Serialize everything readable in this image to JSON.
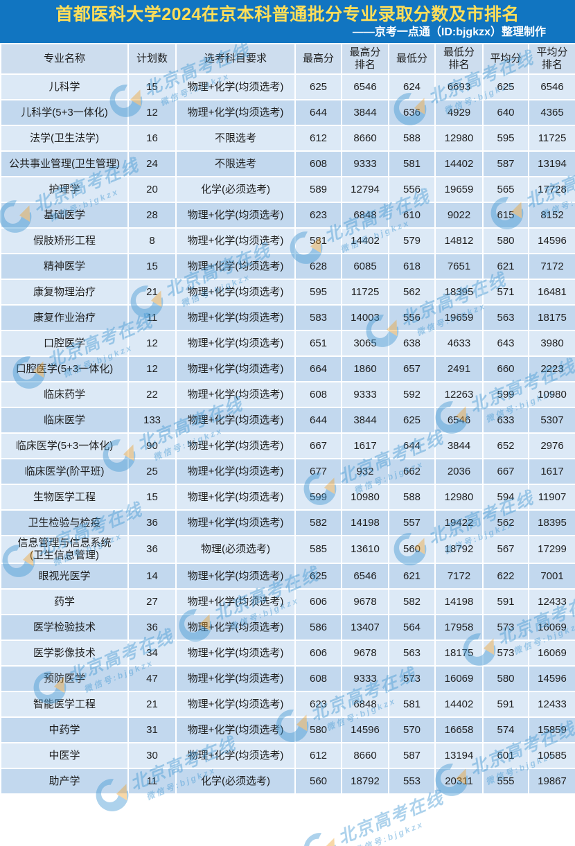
{
  "banner": {
    "title": "首都医科大学2024在京本科普通批分专业录取分数及市排名",
    "subtitle": "——京考一点通（ID:bjgkzx）整理制作"
  },
  "colors": {
    "banner_bg": "#1175C1",
    "title_color": "#FFDE59",
    "subtitle_color": "#FFFFFF",
    "header_row_bg": "#CDDDEE",
    "row_light": "#DCE9F6",
    "row_dark": "#C2D8EE",
    "text_color": "#1F1F1F",
    "watermark_color": "#3E96D2",
    "watermark_accent": "#F0A32F"
  },
  "watermark": {
    "brand": "北京高考在线",
    "wechat": "微信号:bjgkzx",
    "logo_icon": "gk-swoosh-logo"
  },
  "table": {
    "columns": [
      "专业名称",
      "计划数",
      "选考科目要求",
      "最高分",
      "最高分\n排名",
      "最低分",
      "最低分\n排名",
      "平均分",
      "平均分\n排名"
    ],
    "rows": [
      [
        "儿科学",
        "15",
        "物理+化学(均须选考)",
        "625",
        "6546",
        "624",
        "6693",
        "625",
        "6546"
      ],
      [
        "儿科学(5+3一体化)",
        "12",
        "物理+化学(均须选考)",
        "644",
        "3844",
        "636",
        "4929",
        "640",
        "4365"
      ],
      [
        "法学(卫生法学)",
        "16",
        "不限选考",
        "612",
        "8660",
        "588",
        "12980",
        "595",
        "11725"
      ],
      [
        "公共事业管理(卫生管理)",
        "24",
        "不限选考",
        "608",
        "9333",
        "581",
        "14402",
        "587",
        "13194"
      ],
      [
        "护理学",
        "20",
        "化学(必须选考)",
        "589",
        "12794",
        "556",
        "19659",
        "565",
        "17728"
      ],
      [
        "基础医学",
        "28",
        "物理+化学(均须选考)",
        "623",
        "6848",
        "610",
        "9022",
        "615",
        "8152"
      ],
      [
        "假肢矫形工程",
        "8",
        "物理+化学(均须选考)",
        "581",
        "14402",
        "579",
        "14812",
        "580",
        "14596"
      ],
      [
        "精神医学",
        "15",
        "物理+化学(均须选考)",
        "628",
        "6085",
        "618",
        "7651",
        "621",
        "7172"
      ],
      [
        "康复物理治疗",
        "21",
        "物理+化学(均须选考)",
        "595",
        "11725",
        "562",
        "18395",
        "571",
        "16481"
      ],
      [
        "康复作业治疗",
        "11",
        "物理+化学(均须选考)",
        "583",
        "14003",
        "556",
        "19659",
        "563",
        "18175"
      ],
      [
        "口腔医学",
        "12",
        "物理+化学(均须选考)",
        "651",
        "3065",
        "638",
        "4633",
        "643",
        "3980"
      ],
      [
        "口腔医学(5+3一体化)",
        "12",
        "物理+化学(均须选考)",
        "664",
        "1860",
        "657",
        "2491",
        "660",
        "2223"
      ],
      [
        "临床药学",
        "22",
        "物理+化学(均须选考)",
        "608",
        "9333",
        "592",
        "12263",
        "599",
        "10980"
      ],
      [
        "临床医学",
        "133",
        "物理+化学(均须选考)",
        "644",
        "3844",
        "625",
        "6546",
        "633",
        "5307"
      ],
      [
        "临床医学(5+3一体化)",
        "90",
        "物理+化学(均须选考)",
        "667",
        "1617",
        "644",
        "3844",
        "652",
        "2976"
      ],
      [
        "临床医学(阶平班)",
        "25",
        "物理+化学(均须选考)",
        "677",
        "932",
        "662",
        "2036",
        "667",
        "1617"
      ],
      [
        "生物医学工程",
        "15",
        "物理+化学(均须选考)",
        "599",
        "10980",
        "588",
        "12980",
        "594",
        "11907"
      ],
      [
        "卫生检验与检疫",
        "36",
        "物理+化学(均须选考)",
        "582",
        "14198",
        "557",
        "19422",
        "562",
        "18395"
      ],
      [
        "信息管理与信息系统\n(卫生信息管理)",
        "36",
        "物理(必须选考)",
        "585",
        "13610",
        "560",
        "18792",
        "567",
        "17299"
      ],
      [
        "眼视光医学",
        "14",
        "物理+化学(均须选考)",
        "625",
        "6546",
        "621",
        "7172",
        "622",
        "7001"
      ],
      [
        "药学",
        "27",
        "物理+化学(均须选考)",
        "606",
        "9678",
        "582",
        "14198",
        "591",
        "12433"
      ],
      [
        "医学检验技术",
        "36",
        "物理+化学(均须选考)",
        "586",
        "13407",
        "564",
        "17958",
        "573",
        "16069"
      ],
      [
        "医学影像技术",
        "34",
        "物理+化学(均须选考)",
        "606",
        "9678",
        "563",
        "18175",
        "573",
        "16069"
      ],
      [
        "预防医学",
        "47",
        "物理+化学(均须选考)",
        "608",
        "9333",
        "573",
        "16069",
        "580",
        "14596"
      ],
      [
        "智能医学工程",
        "21",
        "物理+化学(均须选考)",
        "623",
        "6848",
        "581",
        "14402",
        "591",
        "12433"
      ],
      [
        "中药学",
        "31",
        "物理+化学(均须选考)",
        "580",
        "14596",
        "570",
        "16658",
        "574",
        "15859"
      ],
      [
        "中医学",
        "30",
        "物理+化学(均须选考)",
        "612",
        "8660",
        "587",
        "13194",
        "601",
        "10585"
      ],
      [
        "助产学",
        "11",
        "化学(必须选考)",
        "560",
        "18792",
        "553",
        "20311",
        "555",
        "19867"
      ]
    ]
  }
}
